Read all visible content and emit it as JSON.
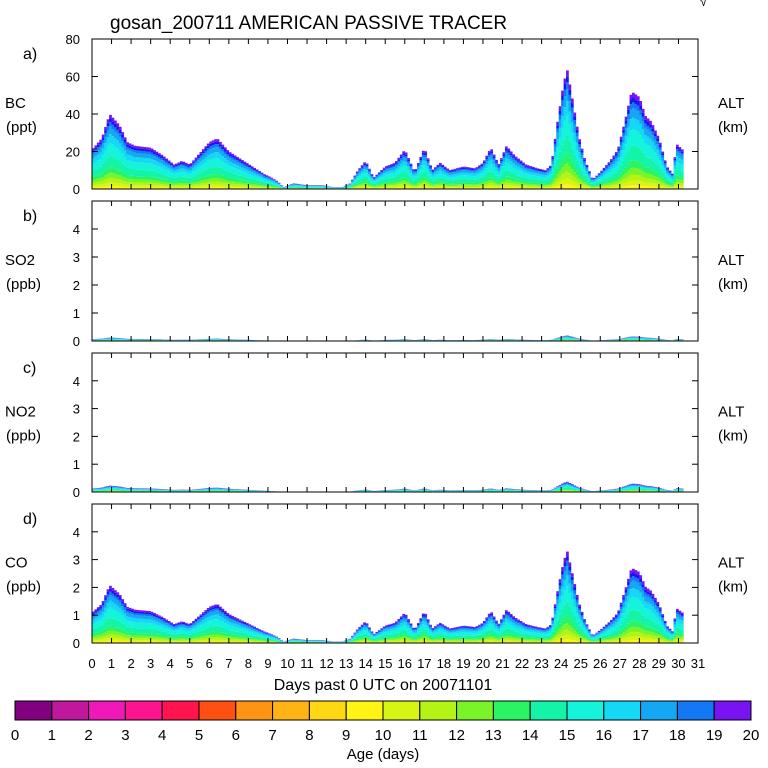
{
  "chart_data": {
    "type": "area",
    "title": "gosan_200711 AMERICAN PASSIVE TRACER",
    "corner_mark": "√",
    "xlabel": "Days past 0 UTC on 20071101",
    "x_ticks": [
      "0",
      "1",
      "2",
      "3",
      "4",
      "5",
      "6",
      "7",
      "8",
      "9",
      "10",
      "11",
      "12",
      "13",
      "14",
      "15",
      "16",
      "17",
      "18",
      "19",
      "20",
      "21",
      "22",
      "23",
      "24",
      "25",
      "26",
      "27",
      "28",
      "29",
      "30",
      "31"
    ],
    "xlim": [
      0,
      31
    ],
    "right_label": "ALT",
    "right_unit": "(km)",
    "series_profile": [
      {
        "day": 0.0,
        "value": 21
      },
      {
        "day": 0.5,
        "value": 27
      },
      {
        "day": 0.9,
        "value": 40
      },
      {
        "day": 1.4,
        "value": 34
      },
      {
        "day": 1.8,
        "value": 25
      },
      {
        "day": 2.2,
        "value": 23
      },
      {
        "day": 3.0,
        "value": 22
      },
      {
        "day": 3.6,
        "value": 18
      },
      {
        "day": 4.2,
        "value": 13
      },
      {
        "day": 4.6,
        "value": 15
      },
      {
        "day": 5.0,
        "value": 13
      },
      {
        "day": 5.5,
        "value": 19
      },
      {
        "day": 6.0,
        "value": 25
      },
      {
        "day": 6.4,
        "value": 27
      },
      {
        "day": 7.0,
        "value": 20
      },
      {
        "day": 7.6,
        "value": 16
      },
      {
        "day": 8.2,
        "value": 12
      },
      {
        "day": 8.8,
        "value": 8
      },
      {
        "day": 9.2,
        "value": 6
      },
      {
        "day": 9.5,
        "value": 4
      },
      {
        "day": 9.8,
        "value": 1
      },
      {
        "day": 10.3,
        "value": 3
      },
      {
        "day": 11.0,
        "value": 2
      },
      {
        "day": 11.8,
        "value": 2
      },
      {
        "day": 12.3,
        "value": 1
      },
      {
        "day": 12.8,
        "value": 1
      },
      {
        "day": 13.2,
        "value": 3
      },
      {
        "day": 13.6,
        "value": 10
      },
      {
        "day": 14.0,
        "value": 15
      },
      {
        "day": 14.4,
        "value": 6
      },
      {
        "day": 15.0,
        "value": 12
      },
      {
        "day": 15.5,
        "value": 14
      },
      {
        "day": 16.0,
        "value": 21
      },
      {
        "day": 16.5,
        "value": 9
      },
      {
        "day": 17.0,
        "value": 22
      },
      {
        "day": 17.4,
        "value": 10
      },
      {
        "day": 17.8,
        "value": 14
      },
      {
        "day": 18.3,
        "value": 10
      },
      {
        "day": 19.0,
        "value": 12
      },
      {
        "day": 19.6,
        "value": 11
      },
      {
        "day": 20.0,
        "value": 14
      },
      {
        "day": 20.4,
        "value": 22
      },
      {
        "day": 20.8,
        "value": 13
      },
      {
        "day": 21.2,
        "value": 23
      },
      {
        "day": 21.6,
        "value": 18
      },
      {
        "day": 22.2,
        "value": 13
      },
      {
        "day": 22.8,
        "value": 11
      },
      {
        "day": 23.2,
        "value": 10
      },
      {
        "day": 23.5,
        "value": 13
      },
      {
        "day": 23.8,
        "value": 35
      },
      {
        "day": 24.1,
        "value": 55
      },
      {
        "day": 24.3,
        "value": 64
      },
      {
        "day": 24.6,
        "value": 46
      },
      {
        "day": 24.9,
        "value": 28
      },
      {
        "day": 25.2,
        "value": 16
      },
      {
        "day": 25.6,
        "value": 5
      },
      {
        "day": 26.0,
        "value": 9
      },
      {
        "day": 26.5,
        "value": 15
      },
      {
        "day": 26.9,
        "value": 21
      },
      {
        "day": 27.3,
        "value": 38
      },
      {
        "day": 27.6,
        "value": 52
      },
      {
        "day": 28.0,
        "value": 49
      },
      {
        "day": 28.3,
        "value": 39
      },
      {
        "day": 28.6,
        "value": 36
      },
      {
        "day": 29.0,
        "value": 27
      },
      {
        "day": 29.4,
        "value": 12
      },
      {
        "day": 29.7,
        "value": 8
      },
      {
        "day": 29.9,
        "value": 24
      },
      {
        "day": 30.2,
        "value": 21
      }
    ],
    "panels": [
      {
        "letter": "a)",
        "species": "BC",
        "unit": "(ppt)",
        "ylim": [
          0,
          80
        ],
        "yticks": [
          "0",
          "20",
          "40",
          "60",
          "80"
        ],
        "scale": 1.0
      },
      {
        "letter": "b)",
        "species": "SO2",
        "unit": "(ppb)",
        "ylim": [
          0,
          5
        ],
        "yticks": [
          "0",
          "1",
          "2",
          "3",
          "4"
        ],
        "scale": 0.0031
      },
      {
        "letter": "c)",
        "species": "NO2",
        "unit": "(ppb)",
        "ylim": [
          0,
          5
        ],
        "yticks": [
          "0",
          "1",
          "2",
          "3",
          "4"
        ],
        "scale": 0.0058
      },
      {
        "letter": "d)",
        "species": "CO",
        "unit": "(ppb)",
        "ylim": [
          0,
          5
        ],
        "yticks": [
          "0",
          "1",
          "2",
          "3",
          "4"
        ],
        "scale": 0.052
      }
    ],
    "colorbar": {
      "label": "Age (days)",
      "ticks": [
        "0",
        "1",
        "2",
        "3",
        "4",
        "5",
        "6",
        "7",
        "8",
        "9",
        "10",
        "11",
        "12",
        "13",
        "14",
        "15",
        "16",
        "17",
        "18",
        "19",
        "20"
      ],
      "colors": [
        "#800080",
        "#c0189c",
        "#f018b8",
        "#ff1490",
        "#ff1450",
        "#ff5014",
        "#ff9414",
        "#ffb414",
        "#ffd814",
        "#fff414",
        "#d8f414",
        "#b4f414",
        "#78f428",
        "#28f464",
        "#14f4a8",
        "#14f4dc",
        "#14d8f4",
        "#14a8f4",
        "#1478f4",
        "#1414f4",
        "#7814f4"
      ]
    }
  }
}
